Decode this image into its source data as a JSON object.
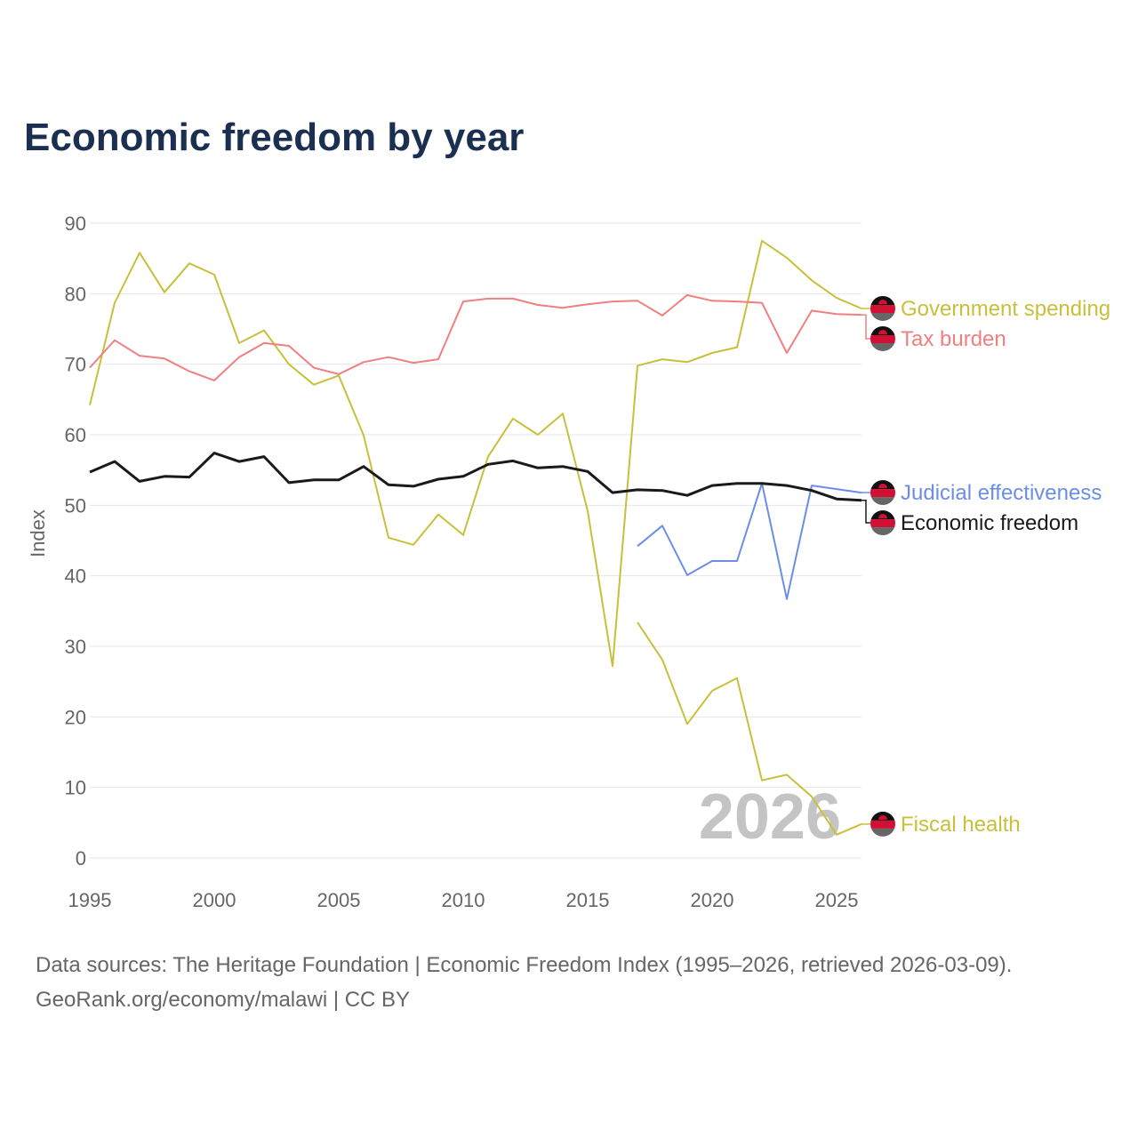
{
  "chart_data": {
    "type": "line",
    "title": "Economic freedom by year",
    "xlabel": "",
    "ylabel": "Index",
    "xlim": [
      1995,
      2026
    ],
    "ylim": [
      0,
      90
    ],
    "x_ticks": [
      1995,
      2000,
      2005,
      2010,
      2015,
      2020,
      2025
    ],
    "y_ticks": [
      0,
      10,
      20,
      30,
      40,
      50,
      60,
      70,
      80,
      90
    ],
    "grid": true,
    "legend": "right-end-labels",
    "watermark_year": "2026",
    "series": [
      {
        "name": "Government spending",
        "color": "#c8c03a",
        "width": 2,
        "start": 1995,
        "values": [
          64.2,
          78.7,
          85.8,
          80.2,
          84.3,
          82.7,
          73.0,
          74.8,
          70.0,
          67.1,
          68.4,
          59.9,
          45.4,
          44.4,
          48.7,
          45.8,
          56.9,
          62.3,
          60.0,
          63.0,
          49.2,
          27.2,
          69.8,
          70.7,
          70.3,
          71.6,
          72.4,
          87.5,
          85.1,
          81.9,
          79.4,
          77.9
        ]
      },
      {
        "name": "Tax burden",
        "color": "#f08080",
        "width": 2,
        "start": 1995,
        "values": [
          69.5,
          73.4,
          71.2,
          70.8,
          69.0,
          67.7,
          71.0,
          73.0,
          72.6,
          69.5,
          68.6,
          70.3,
          71.0,
          70.2,
          70.7,
          78.9,
          79.3,
          79.3,
          78.4,
          78.0,
          78.5,
          78.9,
          79.0,
          76.9,
          79.8,
          79.0,
          78.9,
          78.7,
          71.6,
          77.6,
          77.1,
          77.0
        ]
      },
      {
        "name": "Judicial effectiveness",
        "color": "#6a8ee8",
        "width": 2,
        "start": 2017,
        "values": [
          44.2,
          47.1,
          40.1,
          42.1,
          42.1,
          53.1,
          36.7,
          52.8,
          52.3,
          51.8
        ]
      },
      {
        "name": "Economic freedom",
        "color": "#1a1a1a",
        "width": 3,
        "start": 1995,
        "values": [
          54.7,
          56.2,
          53.4,
          54.1,
          54.0,
          57.4,
          56.2,
          56.9,
          53.2,
          53.6,
          53.6,
          55.5,
          52.9,
          52.7,
          53.7,
          54.1,
          55.8,
          56.3,
          55.3,
          55.5,
          54.8,
          51.8,
          52.2,
          52.1,
          51.4,
          52.8,
          53.1,
          53.1,
          52.8,
          52.1,
          50.9,
          50.7
        ]
      },
      {
        "name": "Fiscal health",
        "color": "#c8c03a",
        "width": 2,
        "start": 2017,
        "values": [
          33.4,
          28.1,
          19.0,
          23.7,
          25.5,
          11.0,
          11.8,
          8.7,
          3.3,
          4.8
        ]
      }
    ]
  },
  "source": {
    "line1": "Data sources: The Heritage Foundation | Economic Freedom Index (1995–2026, retrieved 2026-03-09).",
    "line2": "GeoRank.org/economy/malawi | CC BY"
  },
  "flag_icon": "malawi-flag-icon"
}
